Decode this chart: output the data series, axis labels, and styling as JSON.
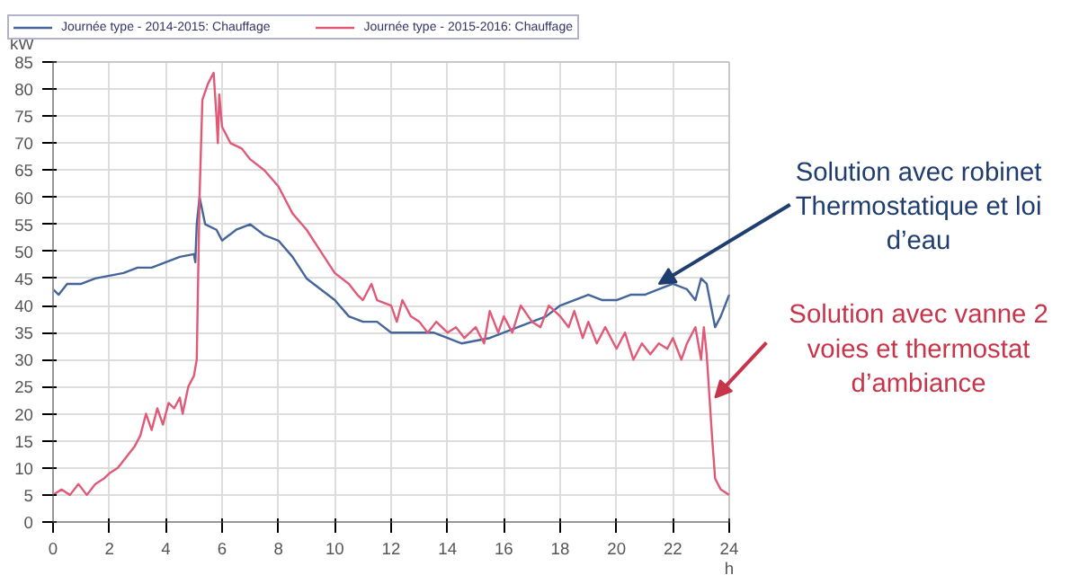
{
  "chart_data": {
    "type": "line",
    "xlabel": "h",
    "ylabel": "kW",
    "xlim": [
      0,
      24
    ],
    "ylim": [
      0,
      85
    ],
    "xticks": [
      0,
      2,
      4,
      6,
      8,
      10,
      12,
      14,
      16,
      18,
      20,
      22,
      24
    ],
    "yticks": [
      0,
      5,
      10,
      15,
      20,
      25,
      30,
      35,
      40,
      45,
      50,
      55,
      60,
      65,
      70,
      75,
      80,
      85
    ],
    "grid": true,
    "legend": "top",
    "marker": "none",
    "line_style": "solid",
    "series": [
      {
        "name": "Journée type - 2014-2015: Chauffage",
        "color": "#44659a",
        "x": [
          0,
          0.2,
          0.5,
          1,
          1.5,
          2,
          2.5,
          3,
          3.5,
          4,
          4.5,
          5,
          5.05,
          5.1,
          5.2,
          5.4,
          5.8,
          6,
          6.5,
          7,
          7.5,
          8,
          8.5,
          9,
          9.5,
          10,
          10.5,
          11,
          11.5,
          12,
          12.5,
          13,
          13.5,
          14,
          14.5,
          15,
          15.5,
          16,
          16.5,
          17,
          17.5,
          18,
          18.5,
          19,
          19.5,
          20,
          20.5,
          21,
          21.5,
          22,
          22.5,
          22.8,
          23,
          23.2,
          23.5,
          23.7,
          24
        ],
        "values": [
          43,
          42,
          44,
          44,
          45,
          45.5,
          46,
          47,
          47,
          48,
          49,
          49.5,
          48,
          55,
          60,
          55,
          54,
          52,
          54,
          55,
          53,
          52,
          49,
          45,
          43,
          41,
          38,
          37,
          37,
          35,
          35,
          35,
          35,
          34,
          33,
          33.5,
          34,
          35,
          36,
          37,
          38,
          40,
          41,
          42,
          41,
          41,
          42,
          42,
          43,
          44,
          43,
          41,
          45,
          44,
          36,
          38,
          42
        ]
      },
      {
        "name": "Journée type - 2015-2016: Chauffage",
        "color": "#e05a78",
        "x": [
          0,
          0.3,
          0.6,
          0.9,
          1.2,
          1.5,
          1.8,
          2,
          2.3,
          2.6,
          2.9,
          3.1,
          3.3,
          3.5,
          3.7,
          3.9,
          4.1,
          4.3,
          4.5,
          4.6,
          4.8,
          5,
          5.1,
          5.2,
          5.3,
          5.5,
          5.7,
          5.8,
          5.85,
          5.9,
          6,
          6.3,
          6.7,
          7,
          7.5,
          8,
          8.5,
          9,
          9.5,
          10,
          10.5,
          10.8,
          11,
          11.3,
          11.5,
          12,
          12.2,
          12.4,
          12.7,
          13,
          13.3,
          13.6,
          14,
          14.3,
          14.6,
          15,
          15.3,
          15.5,
          15.8,
          16,
          16.3,
          16.6,
          17,
          17.3,
          17.6,
          18,
          18.3,
          18.5,
          18.8,
          19,
          19.3,
          19.6,
          20,
          20.3,
          20.6,
          20.9,
          21.2,
          21.5,
          21.8,
          22,
          22.3,
          22.5,
          22.8,
          23,
          23.1,
          23.2,
          23.3,
          23.4,
          23.5,
          23.7,
          24
        ],
        "values": [
          5,
          6,
          5,
          7,
          5,
          7,
          8,
          9,
          10,
          12,
          14,
          16,
          20,
          17,
          21,
          18,
          22,
          21,
          23,
          20,
          25,
          27,
          30,
          60,
          78,
          81,
          83,
          75,
          70,
          79,
          73,
          70,
          69,
          67,
          65,
          62,
          57,
          54,
          50,
          46,
          44,
          42,
          41,
          44,
          41,
          40,
          37,
          41,
          38,
          37,
          35,
          37,
          35,
          36,
          34,
          36,
          33,
          39,
          35,
          38,
          35,
          40,
          37,
          36,
          40,
          38,
          36,
          39,
          34,
          37,
          33,
          36,
          32,
          35,
          30,
          33,
          31,
          33,
          32,
          34,
          30,
          33,
          36,
          30,
          36,
          31,
          23,
          15,
          8,
          6,
          5
        ]
      }
    ],
    "annotations": [
      {
        "text": "Solution avec robinet\nThermostatique et loi\nd’eau",
        "x": 21.5,
        "y": 44
      },
      {
        "text": "Solution avec vanne 2\nvoies et thermostat\nd’ambiance",
        "x": 23.5,
        "y": 23
      }
    ]
  }
}
